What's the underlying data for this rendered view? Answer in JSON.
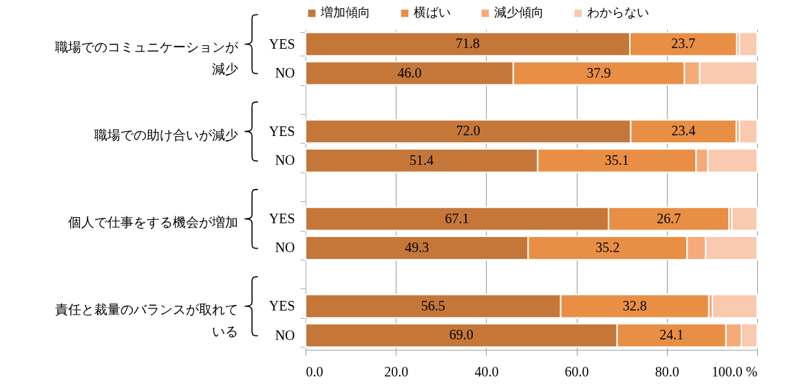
{
  "chart_data": {
    "type": "bar",
    "orientation": "horizontal",
    "stacked": true,
    "legend": "top",
    "grid": "x",
    "categories": [
      "YES",
      "NO",
      null,
      "YES",
      "NO",
      null,
      "YES",
      "NO",
      null,
      "YES",
      "NO"
    ],
    "series": [
      {
        "name": "増加傾向",
        "color": "#c5773a",
        "values": [
          71.8,
          46.0,
          null,
          72.0,
          51.4,
          null,
          67.1,
          49.3,
          null,
          56.5,
          69.0
        ],
        "value_labels": [
          "71.8",
          "46.0",
          null,
          "72.0",
          "51.4",
          null,
          "67.1",
          "49.3",
          null,
          "56.5",
          "69.0"
        ]
      },
      {
        "name": "横ばい",
        "color": "#e98f45",
        "values": [
          23.7,
          37.9,
          null,
          23.4,
          35.1,
          null,
          26.7,
          35.2,
          null,
          32.8,
          24.1
        ],
        "value_labels": [
          "23.7",
          "37.9",
          null,
          "23.4",
          "35.1",
          null,
          "26.7",
          "35.2",
          null,
          "32.8",
          "24.1"
        ]
      },
      {
        "name": "減少傾向",
        "color": "#f5aa78",
        "values": [
          0.6,
          3.4,
          null,
          0.7,
          2.6,
          null,
          0.6,
          4.1,
          null,
          0.8,
          3.4
        ]
      },
      {
        "name": "わからない",
        "color": "#f9c9b0",
        "values": [
          3.9,
          12.7,
          null,
          3.9,
          10.9,
          null,
          5.6,
          11.4,
          null,
          9.9,
          3.5
        ]
      }
    ],
    "xlim": [
      0,
      100
    ],
    "xticks": [
      {
        "value": 0,
        "label": "0.0"
      },
      {
        "value": 20,
        "label": "20.0"
      },
      {
        "value": 40,
        "label": "40.0"
      },
      {
        "value": 60,
        "label": "60.0"
      },
      {
        "value": 80,
        "label": "80.0"
      },
      {
        "value": 100,
        "label": "100.0 %"
      }
    ],
    "annotations": [
      "職場でのコミュニケーションが減少",
      "職場での助け合いが減少",
      "個人で仕事をする機会が増加",
      "責任と裁量のバランスが取れている"
    ]
  }
}
